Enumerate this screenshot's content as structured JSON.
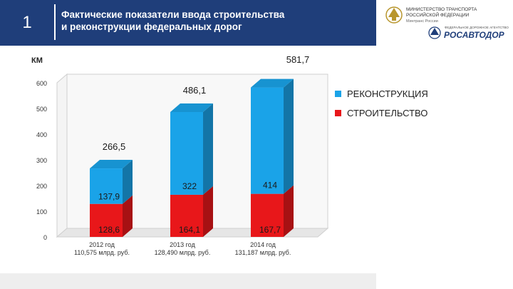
{
  "header": {
    "slide_number": "1",
    "title_line1": "Фактические показатели ввода строительства",
    "title_line2": "и реконструкции федеральных дорог"
  },
  "logos": {
    "ministry_line1": "МИНИСТЕРСТВО ТРАНСПОРТА",
    "ministry_line2": "РОССИЙСКОЙ ФЕДЕРАЦИИ",
    "ministry_line3": "Минтранс России",
    "agency_caption": "ФЕДЕРАЛЬНОЕ ДОРОЖНОЕ АГЕНТСТВО",
    "agency_name": "РОСАВТОДОР"
  },
  "colors": {
    "header_bg": "#1f3e7a",
    "reconstruction": "#1aa3e8",
    "construction": "#e8171a"
  },
  "chart_data": {
    "type": "bar",
    "stacked": true,
    "ylabel": "КМ",
    "ylim": [
      0,
      600
    ],
    "yticks": [
      0,
      100,
      200,
      300,
      400,
      500,
      600
    ],
    "categories": [
      [
        "2012 год",
        "110,575 млрд. руб."
      ],
      [
        "2013 год",
        "128,490 млрд. руб."
      ],
      [
        "2014 год",
        "131,187 млрд. руб."
      ]
    ],
    "series": [
      {
        "name": "СТРОИТЕЛЬСТВО",
        "color": "#e8171a",
        "values": [
          128.6,
          164.1,
          167.7
        ],
        "labels": [
          "128,6",
          "164,1",
          "167,7"
        ]
      },
      {
        "name": "РЕКОНСТРУКЦИЯ",
        "color": "#1aa3e8",
        "values": [
          137.9,
          322,
          414
        ],
        "labels": [
          "137,9",
          "322",
          "414"
        ]
      }
    ],
    "totals": [
      266.5,
      486.1,
      581.7
    ],
    "total_labels": [
      "266,5",
      "486,1",
      "581,7"
    ],
    "legend_order": [
      "РЕКОНСТРУКЦИЯ",
      "СТРОИТЕЛЬСТВО"
    ],
    "legend_position": "right",
    "grid": false
  }
}
